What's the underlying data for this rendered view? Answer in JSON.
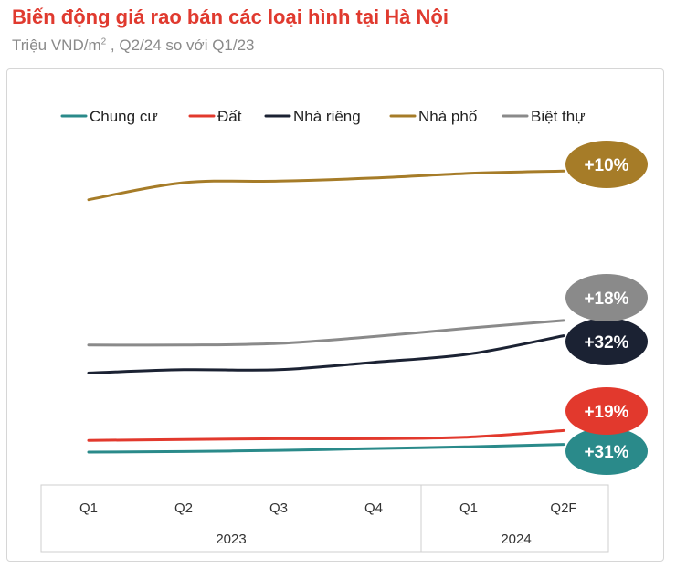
{
  "title": "Biến động giá rao bán các loại hình tại Hà Nội",
  "subtitle_prefix": "Triệu VND/m",
  "subtitle_sup": "2",
  "subtitle_suffix": " , Q2/24 so với Q1/23",
  "colors": {
    "title": "#e03a2f",
    "chung_cu": "#2a8a8a",
    "dat": "#e2392d",
    "nha_rieng": "#1b2233",
    "nha_pho": "#a67c28",
    "biet_thu": "#8a8a8a"
  },
  "chart_data": {
    "type": "line",
    "title": "Biến động giá rao bán các loại hình tại Hà Nội",
    "subtitle": "Triệu VND/m2 , Q2/24 so với Q1/23",
    "categories": [
      "Q1",
      "Q2",
      "Q3",
      "Q4",
      "Q1",
      "Q2F"
    ],
    "year_groups": [
      {
        "label": "2023",
        "span": 4
      },
      {
        "label": "2024",
        "span": 2
      }
    ],
    "legend_position": "top",
    "y_axis_visible": false,
    "series": [
      {
        "name": "Chung cư",
        "color": "#2a8a8a",
        "values": [
          43,
          44,
          46,
          49,
          52,
          56
        ],
        "change_label": "+31%"
      },
      {
        "name": "Đất",
        "color": "#e2392d",
        "values": [
          62,
          63,
          64,
          64,
          66,
          74
        ],
        "change_label": "+19%"
      },
      {
        "name": "Nhà riêng",
        "color": "#1b2233",
        "values": [
          144,
          148,
          148,
          157,
          167,
          190
        ],
        "change_label": "+32%"
      },
      {
        "name": "Nhà phố",
        "color": "#a67c28",
        "values": [
          368,
          390,
          392,
          396,
          402,
          405
        ],
        "change_label": "+10%"
      },
      {
        "name": "Biệt thự",
        "color": "#8a8a8a",
        "values": [
          178,
          178,
          180,
          189,
          200,
          210
        ],
        "change_label": "+18%"
      }
    ],
    "ylim": [
      0,
      450
    ]
  }
}
